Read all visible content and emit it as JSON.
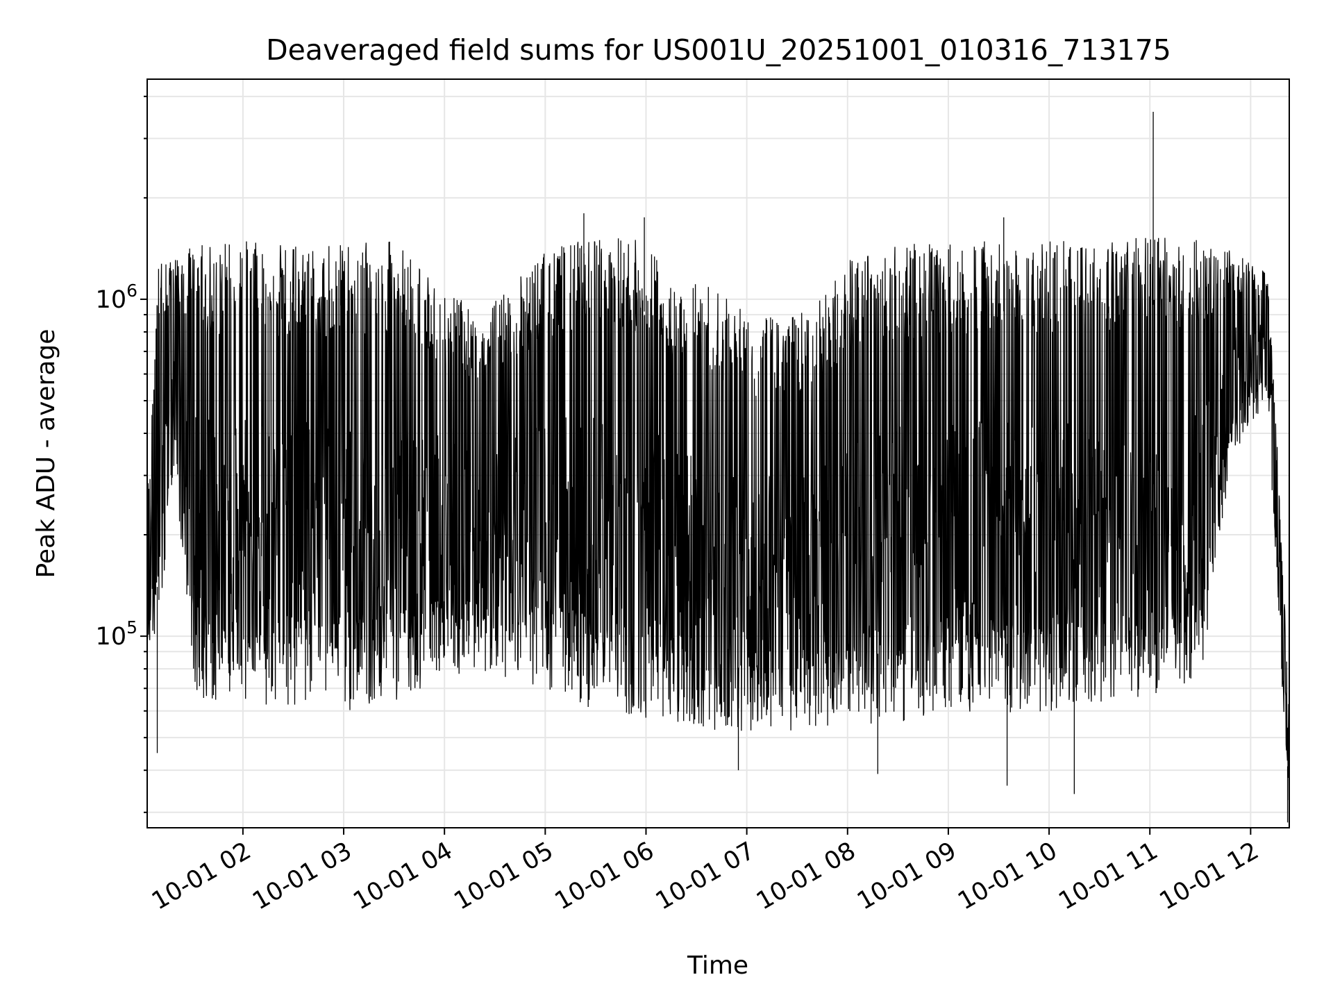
{
  "chart_data": {
    "type": "line",
    "title": "Deaveraged field sums for US001U_20251001_010316_713175",
    "xlabel": "Time",
    "ylabel": "Peak ADU - average",
    "yscale": "log",
    "ylim": [
      27000,
      4500000
    ],
    "xlim": [
      "2025-10-01 01:03",
      "2025-10-01 12:23"
    ],
    "grid": true,
    "x_ticks": [
      {
        "value": "2025-10-01 02:00",
        "label": "10-01 02"
      },
      {
        "value": "2025-10-01 03:00",
        "label": "10-01 03"
      },
      {
        "value": "2025-10-01 04:00",
        "label": "10-01 04"
      },
      {
        "value": "2025-10-01 05:00",
        "label": "10-01 05"
      },
      {
        "value": "2025-10-01 06:00",
        "label": "10-01 06"
      },
      {
        "value": "2025-10-01 07:00",
        "label": "10-01 07"
      },
      {
        "value": "2025-10-01 08:00",
        "label": "10-01 08"
      },
      {
        "value": "2025-10-01 09:00",
        "label": "10-01 09"
      },
      {
        "value": "2025-10-01 10:00",
        "label": "10-01 10"
      },
      {
        "value": "2025-10-01 11:00",
        "label": "10-01 11"
      },
      {
        "value": "2025-10-01 12:00",
        "label": "10-01 12"
      }
    ],
    "y_ticks": [
      {
        "value": 100000,
        "base": "10",
        "exp": "5"
      },
      {
        "value": 1000000,
        "base": "10",
        "exp": "6"
      }
    ],
    "series": [
      {
        "color": "#000000",
        "envelope": [
          {
            "t": "2025-10-01 01:03",
            "low": 90000,
            "high": 250000
          },
          {
            "t": "2025-10-01 01:10",
            "low": 100000,
            "high": 1300000
          },
          {
            "t": "2025-10-01 01:20",
            "low": 300000,
            "high": 1350000
          },
          {
            "t": "2025-10-01 01:30",
            "low": 70000,
            "high": 1450000
          },
          {
            "t": "2025-10-01 01:45",
            "low": 60000,
            "high": 1500000
          },
          {
            "t": "2025-10-01 02:00",
            "low": 60000,
            "high": 1500000
          },
          {
            "t": "2025-10-01 02:30",
            "low": 62000,
            "high": 1450000
          },
          {
            "t": "2025-10-01 03:00",
            "low": 60000,
            "high": 1450000
          },
          {
            "t": "2025-10-01 03:30",
            "low": 62000,
            "high": 1500000
          },
          {
            "t": "2025-10-01 04:00",
            "low": 75000,
            "high": 1100000
          },
          {
            "t": "2025-10-01 04:20",
            "low": 80000,
            "high": 900000
          },
          {
            "t": "2025-10-01 04:40",
            "low": 72000,
            "high": 1100000
          },
          {
            "t": "2025-10-01 05:00",
            "low": 70000,
            "high": 1400000
          },
          {
            "t": "2025-10-01 05:30",
            "low": 60000,
            "high": 1550000
          },
          {
            "t": "2025-10-01 06:00",
            "low": 57000,
            "high": 1500000
          },
          {
            "t": "2025-10-01 06:15",
            "low": 56000,
            "high": 1200000
          },
          {
            "t": "2025-10-01 06:40",
            "low": 52000,
            "high": 1100000
          },
          {
            "t": "2025-10-01 07:00",
            "low": 52000,
            "high": 900000
          },
          {
            "t": "2025-10-01 07:30",
            "low": 52000,
            "high": 900000
          },
          {
            "t": "2025-10-01 08:00",
            "low": 54000,
            "high": 1300000
          },
          {
            "t": "2025-10-01 08:30",
            "low": 55000,
            "high": 1450000
          },
          {
            "t": "2025-10-01 09:00",
            "low": 60000,
            "high": 1500000
          },
          {
            "t": "2025-10-01 09:30",
            "low": 58000,
            "high": 1500000
          },
          {
            "t": "2025-10-01 10:00",
            "low": 60000,
            "high": 1500000
          },
          {
            "t": "2025-10-01 10:30",
            "low": 62000,
            "high": 1500000
          },
          {
            "t": "2025-10-01 11:00",
            "low": 65000,
            "high": 1550000
          },
          {
            "t": "2025-10-01 11:30",
            "low": 75000,
            "high": 1500000
          },
          {
            "t": "2025-10-01 11:50",
            "low": 350000,
            "high": 1400000
          },
          {
            "t": "2025-10-01 12:10",
            "low": 500000,
            "high": 1200000
          },
          {
            "t": "2025-10-01 12:17",
            "low": 100000,
            "high": 300000
          },
          {
            "t": "2025-10-01 12:23",
            "low": 30000,
            "high": 60000
          }
        ],
        "peaks": [
          {
            "t": "2025-10-01 11:02",
            "value": 3600000
          },
          {
            "t": "2025-10-01 05:23",
            "value": 1800000
          },
          {
            "t": "2025-10-01 09:33",
            "value": 1750000
          },
          {
            "t": "2025-10-01 05:59",
            "value": 1750000
          }
        ],
        "dips": [
          {
            "t": "2025-10-01 09:35",
            "value": 36000
          },
          {
            "t": "2025-10-01 10:15",
            "value": 34000
          },
          {
            "t": "2025-10-01 06:55",
            "value": 40000
          },
          {
            "t": "2025-10-01 08:18",
            "value": 39000
          },
          {
            "t": "2025-10-01 12:22",
            "value": 28000
          },
          {
            "t": "2025-10-01 01:09",
            "value": 45000
          }
        ]
      }
    ]
  }
}
